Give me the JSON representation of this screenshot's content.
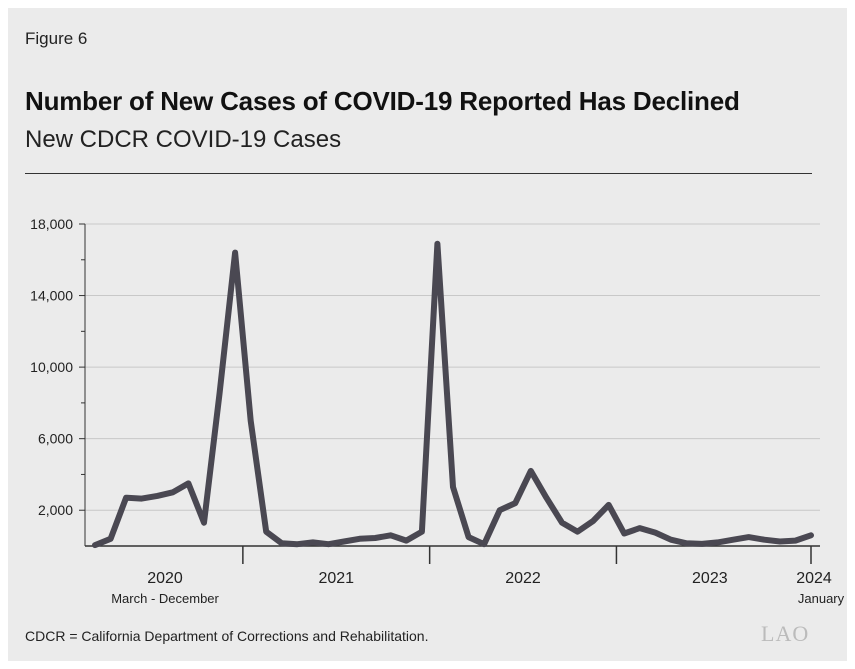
{
  "figure_label": "Figure 6",
  "title": "Number of New Cases of COVID-19 Reported Has Declined",
  "subtitle": "New CDCR COVID-19 Cases",
  "footnote": "CDCR = California Department of Corrections and Rehabilitation.",
  "logo_text": "LAO",
  "colors": {
    "line": "#4a4852",
    "background": "#ebebeb",
    "grid": "#c8c8c8"
  },
  "chart_data": {
    "type": "line",
    "title": "New CDCR COVID-19 Cases",
    "xlabel": "",
    "ylabel": "",
    "ylim": [
      0,
      18000
    ],
    "yticks": [
      "2,000",
      "6,000",
      "10,000",
      "14,000",
      "18,000"
    ],
    "ytick_values": [
      2000,
      6000,
      10000,
      14000,
      18000
    ],
    "grid": true,
    "year_labels": [
      {
        "label": "2020",
        "sublabel": "March - December"
      },
      {
        "label": "2021",
        "sublabel": ""
      },
      {
        "label": "2022",
        "sublabel": ""
      },
      {
        "label": "2023",
        "sublabel": ""
      },
      {
        "label": "2024",
        "sublabel": "January"
      }
    ],
    "x": [
      "2020-03",
      "2020-04",
      "2020-05",
      "2020-06",
      "2020-07",
      "2020-08",
      "2020-09",
      "2020-10",
      "2020-11",
      "2020-12",
      "2021-01",
      "2021-02",
      "2021-03",
      "2021-04",
      "2021-05",
      "2021-06",
      "2021-07",
      "2021-08",
      "2021-09",
      "2021-10",
      "2021-11",
      "2021-12",
      "2022-01",
      "2022-02",
      "2022-03",
      "2022-04",
      "2022-05",
      "2022-06",
      "2022-07",
      "2022-08",
      "2022-09",
      "2022-10",
      "2022-11",
      "2022-12",
      "2023-01",
      "2023-02",
      "2023-03",
      "2023-04",
      "2023-05",
      "2023-06",
      "2023-07",
      "2023-08",
      "2023-09",
      "2023-10",
      "2023-11",
      "2023-12",
      "2024-01"
    ],
    "series": [
      {
        "values": [
          50,
          400,
          2700,
          2650,
          2800,
          3000,
          3500,
          1300,
          8500,
          16400,
          7000,
          800,
          150,
          100,
          200,
          100,
          250,
          400,
          450,
          600,
          300,
          800,
          16900,
          3300,
          500,
          100,
          2000,
          2400,
          4200,
          2700,
          1300,
          800,
          1400,
          2300,
          700,
          1000,
          750,
          350,
          150,
          120,
          200,
          350,
          500,
          350,
          250,
          300,
          600
        ]
      }
    ]
  }
}
